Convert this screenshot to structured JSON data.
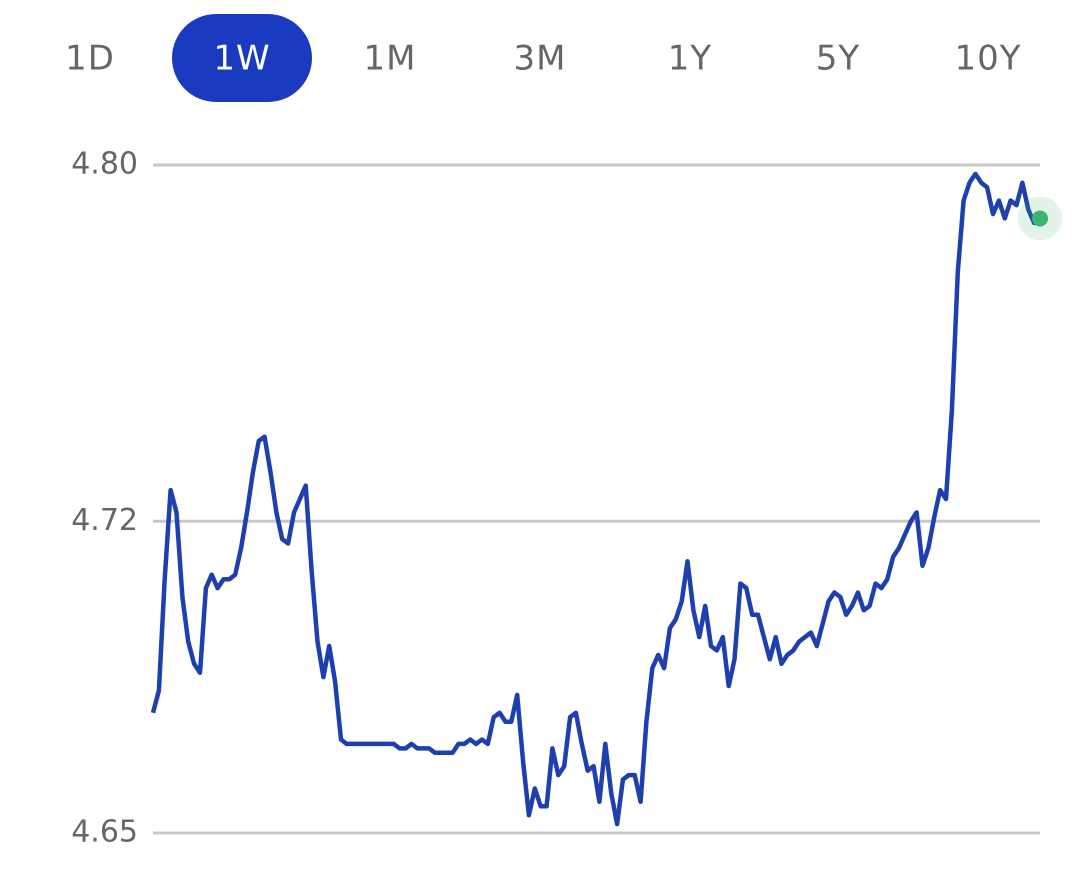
{
  "tabs": [
    "1D",
    "1W",
    "1M",
    "3M",
    "1Y",
    "5Y",
    "10Y"
  ],
  "selected_tab": 1,
  "chart_data": {
    "type": "line",
    "color": "#1e3fae",
    "marker_color": "#3cb371",
    "grid": true,
    "ylim": [
      4.65,
      4.8
    ],
    "yticks": [
      {
        "value": 4.8,
        "label": "4.80"
      },
      4.72,
      4.65
    ],
    "values": [
      4.677,
      4.682,
      4.707,
      4.727,
      4.722,
      4.703,
      4.693,
      4.688,
      4.686,
      4.705,
      4.708,
      4.705,
      4.707,
      4.707,
      4.708,
      4.714,
      4.722,
      4.731,
      4.738,
      4.739,
      4.731,
      4.722,
      4.716,
      4.715,
      4.722,
      4.725,
      4.728,
      4.709,
      4.693,
      4.685,
      4.692,
      4.684,
      4.671,
      4.67,
      4.67,
      4.67,
      4.67,
      4.67,
      4.67,
      4.67,
      4.67,
      4.67,
      4.669,
      4.669,
      4.67,
      4.669,
      4.669,
      4.669,
      4.668,
      4.668,
      4.668,
      4.668,
      4.67,
      4.67,
      4.671,
      4.67,
      4.671,
      4.67,
      4.676,
      4.677,
      4.675,
      4.675,
      4.681,
      4.666,
      4.654,
      4.66,
      4.656,
      4.656,
      4.669,
      4.663,
      4.665,
      4.676,
      4.677,
      4.67,
      4.664,
      4.665,
      4.657,
      4.67,
      4.659,
      4.652,
      4.662,
      4.663,
      4.663,
      4.657,
      4.675,
      4.687,
      4.69,
      4.687,
      4.696,
      4.698,
      4.702,
      4.711,
      4.7,
      4.694,
      4.701,
      4.692,
      4.691,
      4.694,
      4.683,
      4.689,
      4.706,
      4.705,
      4.699,
      4.699,
      4.694,
      4.689,
      4.694,
      4.688,
      4.69,
      4.691,
      4.693,
      4.694,
      4.695,
      4.692,
      4.697,
      4.702,
      4.704,
      4.703,
      4.699,
      4.701,
      4.704,
      4.7,
      4.701,
      4.706,
      4.705,
      4.707,
      4.712,
      4.714,
      4.717,
      4.72,
      4.722,
      4.71,
      4.714,
      4.721,
      4.727,
      4.725,
      4.745,
      4.776,
      4.792,
      4.796,
      4.798,
      4.796,
      4.795,
      4.789,
      4.792,
      4.788,
      4.792,
      4.791,
      4.796,
      4.79,
      4.787,
      4.788
    ]
  }
}
